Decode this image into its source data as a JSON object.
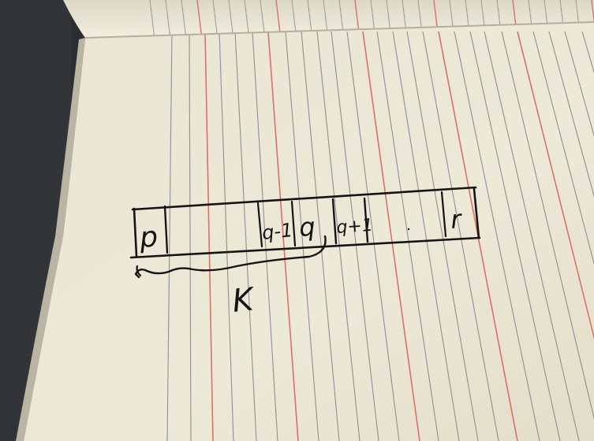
{
  "colors": {
    "background": "#2b2d30",
    "paper": "#ece8d6",
    "paper_shadow": "#c9c5b4",
    "ruling_gray": "#8d8f93",
    "ruling_red": "#d9706a",
    "ink": "#141414"
  },
  "drawing": {
    "array_cells": [
      {
        "label": "p"
      },
      {
        "label": "q-1"
      },
      {
        "label": "q"
      },
      {
        "label": "q+1"
      },
      {
        "label": "r"
      }
    ],
    "brace_label": "K"
  }
}
